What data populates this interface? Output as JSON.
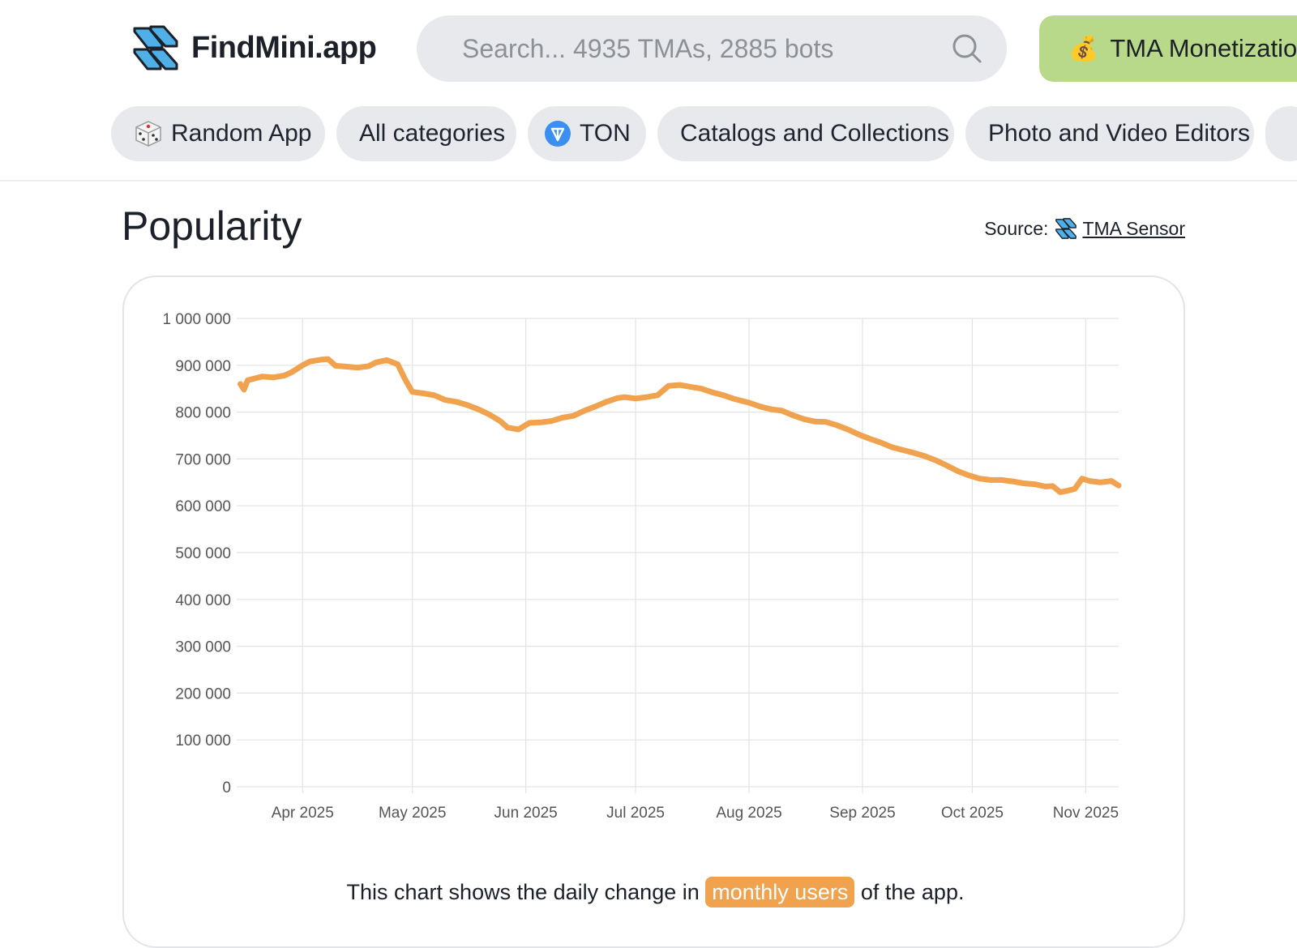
{
  "brand": {
    "name": "FindMini.app"
  },
  "search": {
    "placeholder": "Search... 4935 TMAs, 2885 bots"
  },
  "monetization": {
    "emoji": "💰",
    "label": "TMA Monetization"
  },
  "chips": [
    {
      "label": "Random App",
      "icon": "dice-icon"
    },
    {
      "label": "All categories"
    },
    {
      "label": "TON",
      "icon": "ton-icon"
    },
    {
      "label": "Catalogs and Collections"
    },
    {
      "label": "Photo and Video Editors"
    }
  ],
  "popularity": {
    "title": "Popularity",
    "source_prefix": "Source:",
    "source_link": "TMA Sensor",
    "caption_before": "This chart shows the daily change in",
    "caption_highlight": "monthly users",
    "caption_after": "of the app."
  },
  "colors": {
    "line": "#f0a24e",
    "accent_green": "#b9d98a",
    "ton_blue": "#3a8ff0"
  },
  "chart_data": {
    "type": "line",
    "series": [
      {
        "color": "#f0a24e",
        "points": [
          [
            "2025-03-15",
            860000
          ],
          [
            "2025-03-16",
            848000
          ],
          [
            "2025-03-17",
            868000
          ],
          [
            "2025-03-19",
            872000
          ],
          [
            "2025-03-21",
            876000
          ],
          [
            "2025-03-24",
            874000
          ],
          [
            "2025-03-27",
            878000
          ],
          [
            "2025-03-29",
            885000
          ],
          [
            "2025-04-01",
            900000
          ],
          [
            "2025-04-03",
            908000
          ],
          [
            "2025-04-06",
            912000
          ],
          [
            "2025-04-08",
            913000
          ],
          [
            "2025-04-10",
            899000
          ],
          [
            "2025-04-13",
            897000
          ],
          [
            "2025-04-16",
            895000
          ],
          [
            "2025-04-19",
            898000
          ],
          [
            "2025-04-21",
            906000
          ],
          [
            "2025-04-24",
            911000
          ],
          [
            "2025-04-27",
            902000
          ],
          [
            "2025-04-29",
            870000
          ],
          [
            "2025-05-01",
            843000
          ],
          [
            "2025-05-04",
            840000
          ],
          [
            "2025-05-07",
            836000
          ],
          [
            "2025-05-10",
            826000
          ],
          [
            "2025-05-13",
            822000
          ],
          [
            "2025-05-16",
            815000
          ],
          [
            "2025-05-19",
            806000
          ],
          [
            "2025-05-22",
            795000
          ],
          [
            "2025-05-25",
            781000
          ],
          [
            "2025-05-27",
            767000
          ],
          [
            "2025-05-30",
            763000
          ],
          [
            "2025-06-02",
            777000
          ],
          [
            "2025-06-05",
            778000
          ],
          [
            "2025-06-08",
            781000
          ],
          [
            "2025-06-11",
            788000
          ],
          [
            "2025-06-14",
            792000
          ],
          [
            "2025-06-17",
            803000
          ],
          [
            "2025-06-20",
            812000
          ],
          [
            "2025-06-23",
            822000
          ],
          [
            "2025-06-26",
            830000
          ],
          [
            "2025-06-28",
            832000
          ],
          [
            "2025-07-01",
            829000
          ],
          [
            "2025-07-04",
            832000
          ],
          [
            "2025-07-07",
            836000
          ],
          [
            "2025-07-10",
            856000
          ],
          [
            "2025-07-13",
            858000
          ],
          [
            "2025-07-16",
            854000
          ],
          [
            "2025-07-19",
            850000
          ],
          [
            "2025-07-22",
            842000
          ],
          [
            "2025-07-25",
            836000
          ],
          [
            "2025-07-28",
            828000
          ],
          [
            "2025-08-01",
            820000
          ],
          [
            "2025-08-04",
            812000
          ],
          [
            "2025-08-07",
            806000
          ],
          [
            "2025-08-10",
            803000
          ],
          [
            "2025-08-13",
            793000
          ],
          [
            "2025-08-16",
            785000
          ],
          [
            "2025-08-19",
            780000
          ],
          [
            "2025-08-22",
            779000
          ],
          [
            "2025-08-25",
            772000
          ],
          [
            "2025-08-28",
            763000
          ],
          [
            "2025-08-31",
            752000
          ],
          [
            "2025-09-03",
            743000
          ],
          [
            "2025-09-06",
            735000
          ],
          [
            "2025-09-09",
            725000
          ],
          [
            "2025-09-12",
            719000
          ],
          [
            "2025-09-15",
            713000
          ],
          [
            "2025-09-18",
            706000
          ],
          [
            "2025-09-21",
            697000
          ],
          [
            "2025-09-24",
            686000
          ],
          [
            "2025-09-27",
            674000
          ],
          [
            "2025-09-30",
            665000
          ],
          [
            "2025-10-03",
            658000
          ],
          [
            "2025-10-06",
            655000
          ],
          [
            "2025-10-09",
            655000
          ],
          [
            "2025-10-12",
            652000
          ],
          [
            "2025-10-15",
            648000
          ],
          [
            "2025-10-18",
            646000
          ],
          [
            "2025-10-21",
            641000
          ],
          [
            "2025-10-23",
            642000
          ],
          [
            "2025-10-25",
            629000
          ],
          [
            "2025-10-27",
            632000
          ],
          [
            "2025-10-29",
            636000
          ],
          [
            "2025-10-31",
            658000
          ],
          [
            "2025-11-02",
            653000
          ],
          [
            "2025-11-05",
            650000
          ],
          [
            "2025-11-08",
            653000
          ],
          [
            "2025-11-10",
            643000
          ]
        ]
      }
    ],
    "x_ticks": [
      {
        "date": "2025-04-01",
        "label": "Apr 2025"
      },
      {
        "date": "2025-05-01",
        "label": "May 2025"
      },
      {
        "date": "2025-06-01",
        "label": "Jun 2025"
      },
      {
        "date": "2025-07-01",
        "label": "Jul 2025"
      },
      {
        "date": "2025-08-01",
        "label": "Aug 2025"
      },
      {
        "date": "2025-09-01",
        "label": "Sep 2025"
      },
      {
        "date": "2025-10-01",
        "label": "Oct 2025"
      },
      {
        "date": "2025-11-01",
        "label": "Nov 2025"
      }
    ],
    "xlim": [
      "2025-03-14",
      "2025-11-10"
    ],
    "y_ticks": [
      {
        "value": 0,
        "label": "0"
      },
      {
        "value": 100000,
        "label": "100 000"
      },
      {
        "value": 200000,
        "label": "200 000"
      },
      {
        "value": 300000,
        "label": "300 000"
      },
      {
        "value": 400000,
        "label": "400 000"
      },
      {
        "value": 500000,
        "label": "500 000"
      },
      {
        "value": 600000,
        "label": "600 000"
      },
      {
        "value": 700000,
        "label": "700 000"
      },
      {
        "value": 800000,
        "label": "800 000"
      },
      {
        "value": 900000,
        "label": "900 000"
      },
      {
        "value": 1000000,
        "label": "1 000 000"
      }
    ],
    "ylim": [
      0,
      1000000
    ],
    "grid": true,
    "legend": "none"
  }
}
